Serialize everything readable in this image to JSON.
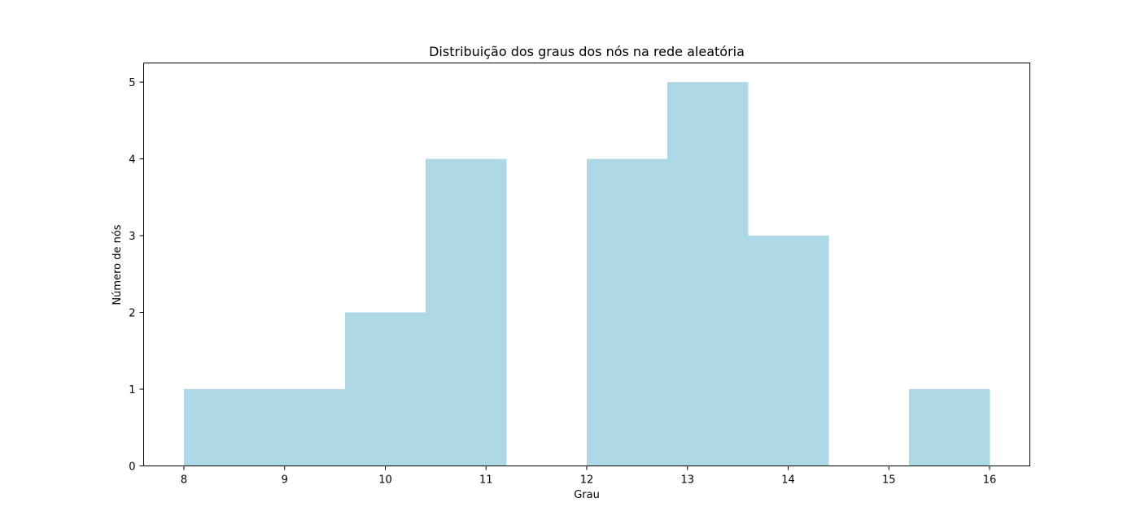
{
  "chart_data": {
    "type": "bar",
    "title": "Distribuição dos graus dos nós na rede aleatória",
    "xlabel": "Grau",
    "ylabel": "Número de nós",
    "bin_edges": [
      8.0,
      8.8,
      9.6,
      10.4,
      11.2,
      12.0,
      12.8,
      13.6,
      14.4,
      15.2,
      16.0
    ],
    "values": [
      1,
      1,
      2,
      4,
      0,
      4,
      5,
      3,
      0,
      1
    ],
    "xlim": [
      7.6,
      16.4
    ],
    "ylim": [
      0,
      5.25
    ],
    "xticks": [
      8,
      9,
      10,
      11,
      12,
      13,
      14,
      15,
      16
    ],
    "yticks": [
      0,
      1,
      2,
      3,
      4,
      5
    ],
    "bar_color": "#add8e6",
    "grid": false,
    "legend": null
  }
}
